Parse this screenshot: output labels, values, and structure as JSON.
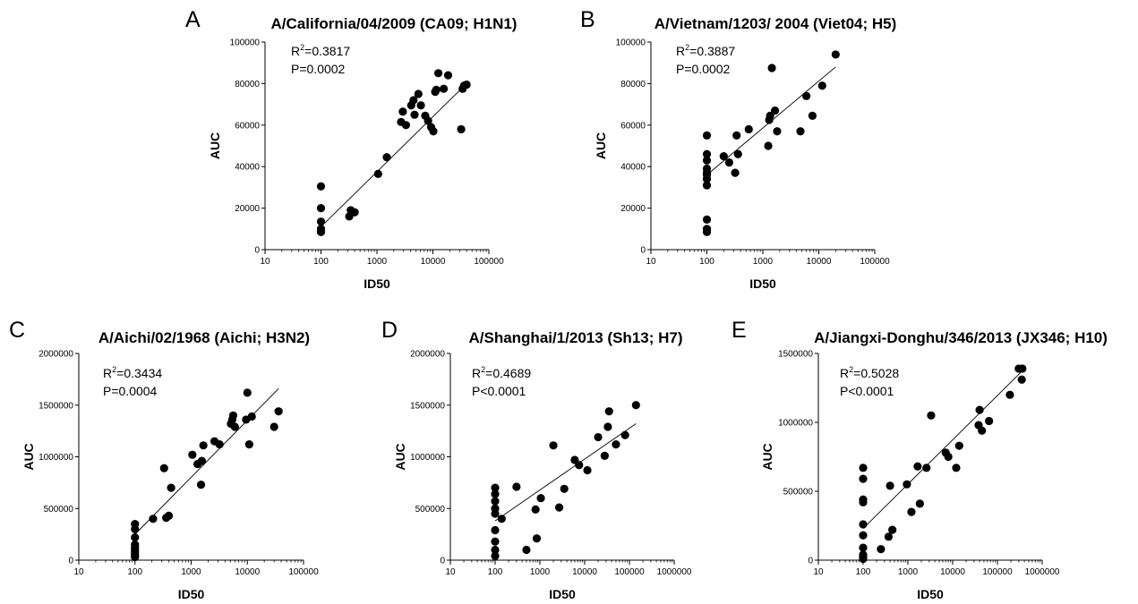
{
  "chart_data": [
    {
      "type": "scatter",
      "panel": "A",
      "title": "A/California/04/2009 (CA09; H1N1)",
      "xlabel": "ID50",
      "ylabel": "AUC",
      "xscale": "log",
      "xlim": [
        10,
        100000
      ],
      "ylim": [
        0,
        100000
      ],
      "xticks": [
        "10",
        "100",
        "1000",
        "10000",
        "100000"
      ],
      "yticks": [
        "0",
        "20000",
        "40000",
        "60000",
        "80000",
        "100000"
      ],
      "r2_label": "R",
      "r2_value": "=0.3817",
      "p_text": "P=0.0002",
      "fit_line": {
        "x": [
          100,
          40000
        ],
        "y": [
          11000,
          80000
        ]
      },
      "x": [
        100,
        100,
        100,
        100,
        100,
        320,
        340,
        400,
        1050,
        1500,
        2700,
        2900,
        3300,
        4100,
        4500,
        4700,
        5500,
        6100,
        7300,
        8200,
        9300,
        10200,
        11000,
        11500,
        12500,
        15600,
        18700,
        32000,
        34000,
        36000,
        40000
      ],
      "y": [
        30500,
        20000,
        13500,
        10000,
        8500,
        16000,
        19000,
        18000,
        36500,
        44500,
        61500,
        66500,
        60000,
        69500,
        72000,
        65000,
        75000,
        69500,
        64500,
        62000,
        59000,
        57000,
        76000,
        77000,
        85000,
        77500,
        84000,
        58000,
        77500,
        79000,
        79500
      ]
    },
    {
      "type": "scatter",
      "panel": "B",
      "title": "A/Vietnam/1203/ 2004 (Viet04; H5)",
      "xlabel": "ID50",
      "ylabel": "AUC",
      "xscale": "log",
      "xlim": [
        10,
        100000
      ],
      "ylim": [
        0,
        100000
      ],
      "xticks": [
        "10",
        "100",
        "1000",
        "10000",
        "100000"
      ],
      "yticks": [
        "0",
        "20000",
        "40000",
        "60000",
        "80000",
        "100000"
      ],
      "r2_label": "R",
      "r2_value": "=0.3887",
      "p_text": "P=0.0002",
      "fit_line": {
        "x": [
          100,
          20000
        ],
        "y": [
          36000,
          88000
        ]
      },
      "x": [
        100,
        100,
        100,
        100,
        100,
        100,
        100,
        100,
        100,
        100,
        100,
        200,
        250,
        320,
        340,
        360,
        560,
        1250,
        1300,
        1350,
        1450,
        1650,
        1800,
        4700,
        6000,
        7700,
        11500,
        20000
      ],
      "y": [
        55000,
        46000,
        43000,
        39000,
        37000,
        34000,
        31000,
        14500,
        10000,
        8500,
        36000,
        45000,
        42000,
        37000,
        55000,
        46000,
        58000,
        50000,
        62500,
        64500,
        87500,
        67000,
        57000,
        57000,
        74000,
        64500,
        79000,
        94000
      ]
    },
    {
      "type": "scatter",
      "panel": "C",
      "title": "A/Aichi/02/1968 (Aichi; H3N2)",
      "xlabel": "ID50",
      "ylabel": "AUC",
      "xscale": "log",
      "xlim": [
        10,
        100000
      ],
      "ylim": [
        0,
        2000000
      ],
      "xticks": [
        "10",
        "100",
        "1000",
        "10000",
        "100000"
      ],
      "yticks": [
        "0",
        "500000",
        "1000000",
        "1500000",
        "2000000"
      ],
      "r2_label": "R",
      "r2_value": "=0.3434",
      "p_text": "P=0.0004",
      "fit_line": {
        "x": [
          100,
          36000
        ],
        "y": [
          250000,
          1660000
        ]
      },
      "x": [
        100,
        100,
        100,
        100,
        100,
        100,
        100,
        100,
        100,
        100,
        210,
        330,
        360,
        400,
        440,
        1050,
        1300,
        1500,
        1550,
        1650,
        2600,
        3200,
        5100,
        5400,
        5600,
        6000,
        9500,
        10000,
        10800,
        12000,
        30000,
        36000
      ],
      "y": [
        350000,
        300000,
        220000,
        150000,
        120000,
        100000,
        80000,
        60000,
        40000,
        30000,
        400000,
        890000,
        410000,
        430000,
        700000,
        1020000,
        930000,
        730000,
        960000,
        1110000,
        1150000,
        1120000,
        1320000,
        1360000,
        1400000,
        1290000,
        1360000,
        1620000,
        1120000,
        1390000,
        1290000,
        1440000
      ]
    },
    {
      "type": "scatter",
      "panel": "D",
      "title": "A/Shanghai/1/2013 (Sh13; H7)",
      "xlabel": "ID50",
      "ylabel": "AUC",
      "xscale": "log",
      "xlim": [
        10,
        1000000
      ],
      "ylim": [
        0,
        2000000
      ],
      "xticks": [
        "10",
        "100",
        "1000",
        "10000",
        "100000",
        "1000000"
      ],
      "yticks": [
        "0",
        "500000",
        "1000000",
        "1500000",
        "2000000"
      ],
      "r2_label": "R",
      "r2_value": "=0.4689",
      "p_text": "P<0.0001",
      "fit_line": {
        "x": [
          100,
          140000
        ],
        "y": [
          380000,
          1320000
        ]
      },
      "x": [
        100,
        100,
        100,
        100,
        100,
        100,
        100,
        100,
        100,
        140,
        300,
        500,
        800,
        850,
        1050,
        2000,
        2700,
        3500,
        6000,
        7500,
        11500,
        20000,
        28000,
        33000,
        35000,
        50000,
        80000,
        140000
      ],
      "y": [
        700000,
        640000,
        570000,
        500000,
        450000,
        290000,
        180000,
        100000,
        40000,
        400000,
        710000,
        100000,
        490000,
        210000,
        600000,
        1110000,
        510000,
        690000,
        970000,
        920000,
        870000,
        1190000,
        1010000,
        1290000,
        1440000,
        1120000,
        1210000,
        1500000
      ]
    },
    {
      "type": "scatter",
      "panel": "E",
      "title": "A/Jiangxi-Donghu/346/2013 (JX346; H10)",
      "xlabel": "ID50",
      "ylabel": "AUC",
      "xscale": "log",
      "xlim": [
        10,
        1000000
      ],
      "ylim": [
        0,
        1500000
      ],
      "xticks": [
        "10",
        "100",
        "1000",
        "10000",
        "100000",
        "1000000"
      ],
      "yticks": [
        "0",
        "500000",
        "1000000",
        "1500000"
      ],
      "r2_label": "R",
      "r2_value": "=0.5028",
      "p_text": "P<0.0001",
      "fit_line": {
        "x": [
          100,
          350000
        ],
        "y": [
          230000,
          1370000
        ]
      },
      "x": [
        100,
        100,
        100,
        100,
        100,
        100,
        100,
        100,
        100,
        100,
        100,
        250,
        370,
        400,
        450,
        950,
        1200,
        1650,
        1850,
        2600,
        3300,
        7000,
        8000,
        12000,
        14000,
        38000,
        40000,
        45000,
        65000,
        190000,
        300000,
        350000,
        360000
      ],
      "y": [
        670000,
        590000,
        440000,
        420000,
        260000,
        180000,
        90000,
        40000,
        30000,
        20000,
        10000,
        80000,
        170000,
        540000,
        220000,
        550000,
        350000,
        680000,
        410000,
        670000,
        1050000,
        780000,
        750000,
        670000,
        830000,
        980000,
        1090000,
        940000,
        1010000,
        1200000,
        1390000,
        1310000,
        1390000
      ]
    }
  ]
}
